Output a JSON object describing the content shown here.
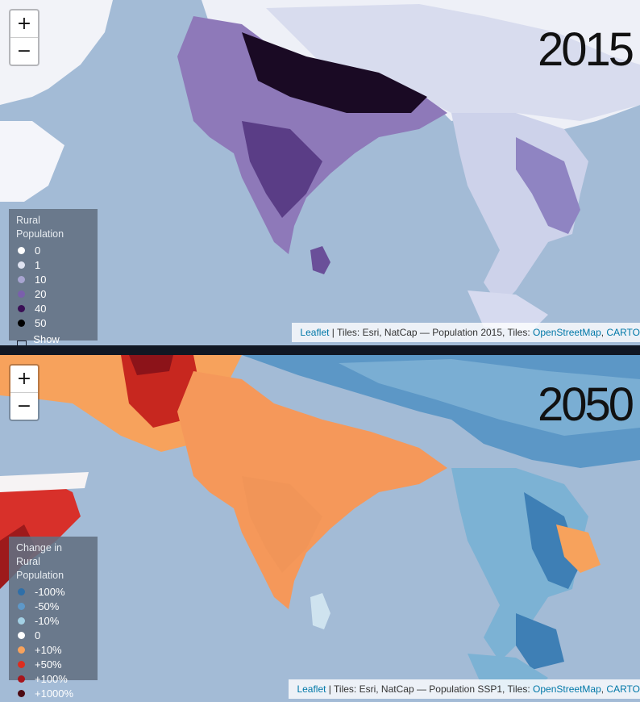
{
  "top_map": {
    "year": "2015",
    "zoom_in": "+",
    "zoom_out": "−",
    "legend": {
      "title": "Rural Population",
      "items": [
        {
          "label": "0",
          "color": "#ffffff"
        },
        {
          "label": "1",
          "color": "#dfe3f1"
        },
        {
          "label": "10",
          "color": "#a7a4d0"
        },
        {
          "label": "20",
          "color": "#7a5fac"
        },
        {
          "label": "40",
          "color": "#3a0f55"
        },
        {
          "label": "50",
          "color": "#000000"
        }
      ],
      "show_labels": "Show Labels"
    },
    "attribution": {
      "leaflet": "Leaflet",
      "text": " | Tiles: Esri, NatCap — Population 2015, Tiles: ",
      "osm": "OpenStreetMap",
      "sep": ", ",
      "carto": "CARTO"
    }
  },
  "bottom_map": {
    "year": "2050",
    "zoom_in": "+",
    "zoom_out": "−",
    "legend": {
      "title_line1": "Change in",
      "title_line2": "Rural Population",
      "items": [
        {
          "label": "-100%",
          "color": "#2f6fa8"
        },
        {
          "label": "-50%",
          "color": "#5e98c8"
        },
        {
          "label": "-10%",
          "color": "#a3d0e4"
        },
        {
          "label": "0",
          "color": "#ffffff"
        },
        {
          "label": "+10%",
          "color": "#f7a25c"
        },
        {
          "label": "+50%",
          "color": "#dd2d1f"
        },
        {
          "label": "+100%",
          "color": "#a8151c"
        },
        {
          "label": "+1000%",
          "color": "#4c0a12"
        }
      ]
    },
    "attribution": {
      "leaflet": "Leaflet",
      "text": " | Tiles: Esri, NatCap — Population SSP1, Tiles: ",
      "osm": "OpenStreetMap",
      "sep": ", ",
      "carto": "CARTO"
    }
  },
  "colors": {
    "ocean": "#a3bbd6",
    "link": "#0078a8"
  }
}
